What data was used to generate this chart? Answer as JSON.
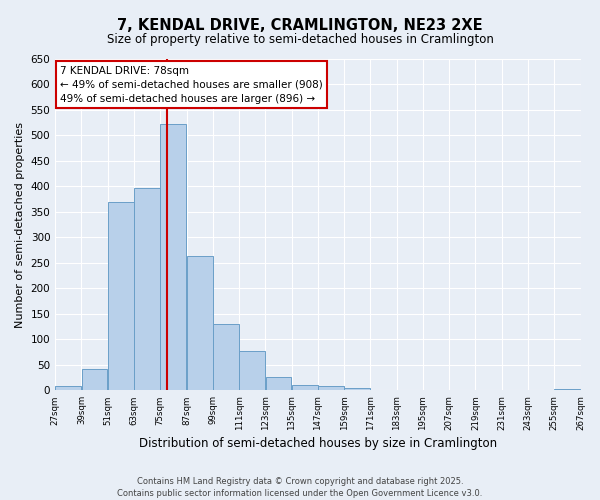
{
  "title": "7, KENDAL DRIVE, CRAMLINGTON, NE23 2XE",
  "subtitle": "Size of property relative to semi-detached houses in Cramlington",
  "xlabel": "Distribution of semi-detached houses by size in Cramlington",
  "ylabel": "Number of semi-detached properties",
  "bin_labels": [
    "27sqm",
    "39sqm",
    "51sqm",
    "63sqm",
    "75sqm",
    "87sqm",
    "99sqm",
    "111sqm",
    "123sqm",
    "135sqm",
    "147sqm",
    "159sqm",
    "171sqm",
    "183sqm",
    "195sqm",
    "207sqm",
    "219sqm",
    "231sqm",
    "243sqm",
    "255sqm",
    "267sqm"
  ],
  "bins_left": [
    27,
    39,
    51,
    63,
    75,
    87,
    99,
    111,
    123,
    135,
    147,
    159,
    171,
    183,
    195,
    207,
    219,
    231,
    243,
    255
  ],
  "counts": [
    8,
    42,
    370,
    397,
    522,
    263,
    130,
    77,
    27,
    10,
    8,
    4,
    0,
    0,
    0,
    0,
    0,
    0,
    0,
    3
  ],
  "bar_color": "#b8d0ea",
  "bar_edge_color": "#6a9fc8",
  "property_size": 78,
  "vline_color": "#cc0000",
  "annotation_text": "7 KENDAL DRIVE: 78sqm\n← 49% of semi-detached houses are smaller (908)\n49% of semi-detached houses are larger (896) →",
  "annotation_box_color": "#ffffff",
  "annotation_box_edge": "#cc0000",
  "ylim": [
    0,
    650
  ],
  "yticks": [
    0,
    50,
    100,
    150,
    200,
    250,
    300,
    350,
    400,
    450,
    500,
    550,
    600,
    650
  ],
  "background_color": "#e8eef6",
  "grid_color": "#ffffff",
  "footer_line1": "Contains HM Land Registry data © Crown copyright and database right 2025.",
  "footer_line2": "Contains public sector information licensed under the Open Government Licence v3.0."
}
